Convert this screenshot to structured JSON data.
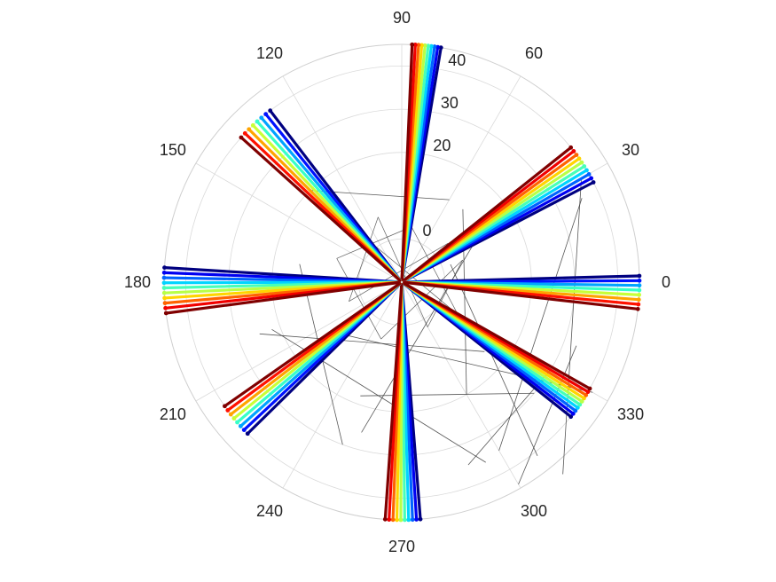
{
  "chart_data": {
    "type": "polar-line",
    "title": "",
    "theta_unit": "degrees",
    "theta_ticks": [
      0,
      30,
      60,
      90,
      120,
      150,
      180,
      210,
      240,
      270,
      300,
      330
    ],
    "theta_tick_labels": [
      "0",
      "30",
      "60",
      "90",
      "120",
      "150",
      "180",
      "210",
      "240",
      "270",
      "300",
      "330"
    ],
    "r_ticks": [
      0,
      20,
      30,
      40
    ],
    "r_tick_labels": [
      "0",
      "20",
      "30",
      "40"
    ],
    "r_lim": [
      -10,
      45
    ],
    "r_tick_label_angle_deg": 80,
    "grid": true,
    "colormap": "jet",
    "connector_color": "#3a3a3a",
    "spoke_clusters": [
      {
        "theta_start": 80.5,
        "theta_end": 87.5,
        "r_end": 45,
        "n_series": 10
      },
      {
        "theta_start": 27.5,
        "theta_end": 38.5,
        "r_end": 40,
        "n_series": 10
      },
      {
        "theta_start": 1.5,
        "theta_end": -6.5,
        "r_end": 45,
        "n_series": 8
      },
      {
        "theta_start": 321.5,
        "theta_end": 330.5,
        "r_end": 40,
        "n_series": 10
      },
      {
        "theta_start": 274.5,
        "theta_end": 266.0,
        "r_end": 45,
        "n_series": 10
      },
      {
        "theta_start": 224.5,
        "theta_end": 215.0,
        "r_end": 40,
        "n_series": 8
      },
      {
        "theta_start": 176.5,
        "theta_end": 187.5,
        "r_end": 45,
        "n_series": 10
      },
      {
        "theta_start": 127.5,
        "theta_end": 138.0,
        "r_end": 40,
        "n_series": 8
      }
    ],
    "connector_segments": [
      [
        [
          2,
          20
        ],
        [
          41,
          308
        ]
      ],
      [
        [
          38,
          30
        ],
        [
          48,
          310
        ]
      ],
      [
        [
          41,
          330
        ],
        [
          10,
          215
        ]
      ],
      [
        [
          36,
          25
        ],
        [
          35,
          300
        ]
      ],
      [
        [
          14,
          170
        ],
        [
          30,
          250
        ]
      ],
      [
        [
          22,
          200
        ],
        [
          36,
          295
        ]
      ],
      [
        [
          30,
          330
        ],
        [
          35,
          290
        ]
      ],
      [
        [
          20,
          135
        ],
        [
          12,
          60
        ]
      ],
      [
        [
          10,
          30
        ],
        [
          26,
          255
        ]
      ],
      [
        [
          33,
          340
        ],
        [
          44,
          300
        ]
      ],
      [
        [
          18,
          250
        ],
        [
          30,
          320
        ]
      ],
      [
        [
          25,
          200
        ],
        [
          15,
          320
        ]
      ],
      [
        [
          12,
          50
        ],
        [
          20,
          300
        ]
      ]
    ]
  }
}
